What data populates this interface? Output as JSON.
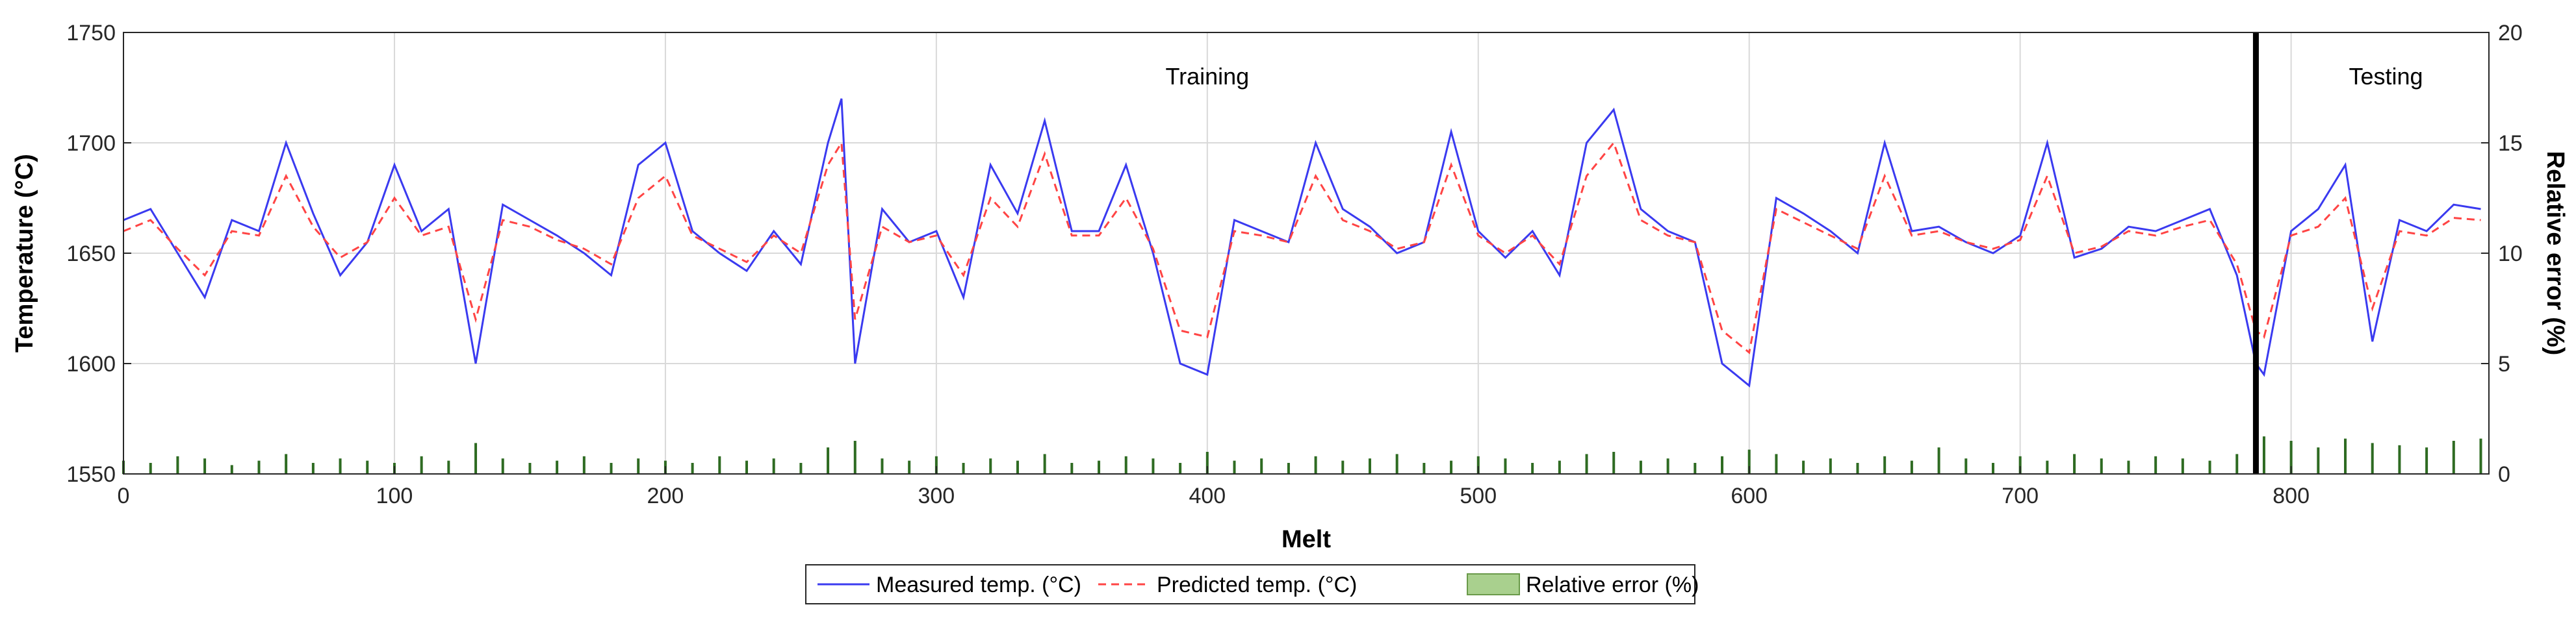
{
  "chart_data": {
    "type": "line",
    "title": "",
    "xlabel": "Melt",
    "ylabel": "Temperature (°C)",
    "ylabel_right": "Relative error (%)",
    "xlim": [
      0,
      873
    ],
    "ylim": [
      1550,
      1750
    ],
    "ylim_right": [
      0,
      20
    ],
    "x_ticks": [
      0,
      100,
      200,
      300,
      400,
      500,
      600,
      700,
      800
    ],
    "y_ticks": [
      1550,
      1600,
      1650,
      1700,
      1750
    ],
    "y_ticks_right": [
      0,
      5,
      10,
      15,
      20
    ],
    "grid": true,
    "split_x": 787,
    "annotations": [
      {
        "text": "Training",
        "x": 400,
        "y": 1730
      },
      {
        "text": "Testing",
        "x": 835,
        "y": 1730
      }
    ],
    "legend": {
      "placement": "bottom-center",
      "entries": [
        "Measured temp. (°C)",
        "Predicted temp. (°C)",
        "Relative error (%)"
      ]
    },
    "series": [
      {
        "name": "Measured temp. (°C)",
        "style": "solid",
        "color": "#3a3af0",
        "x": [
          0,
          10,
          20,
          30,
          40,
          50,
          60,
          70,
          80,
          90,
          100,
          110,
          120,
          130,
          140,
          150,
          160,
          170,
          180,
          190,
          200,
          210,
          220,
          230,
          240,
          250,
          260,
          265,
          270,
          280,
          290,
          300,
          310,
          320,
          330,
          340,
          350,
          360,
          370,
          380,
          390,
          400,
          410,
          420,
          430,
          440,
          450,
          460,
          470,
          480,
          490,
          500,
          510,
          520,
          530,
          540,
          550,
          560,
          570,
          580,
          590,
          600,
          610,
          620,
          630,
          640,
          650,
          660,
          670,
          680,
          690,
          700,
          710,
          720,
          730,
          740,
          750,
          760,
          770,
          780,
          787,
          790,
          800,
          810,
          820,
          830,
          840,
          850,
          860,
          870
        ],
        "values": [
          1665,
          1670,
          1650,
          1630,
          1665,
          1660,
          1700,
          1668,
          1640,
          1655,
          1690,
          1660,
          1670,
          1600,
          1672,
          1665,
          1658,
          1650,
          1640,
          1690,
          1700,
          1660,
          1650,
          1642,
          1660,
          1645,
          1700,
          1720,
          1600,
          1670,
          1655,
          1660,
          1630,
          1690,
          1668,
          1710,
          1660,
          1660,
          1690,
          1650,
          1600,
          1595,
          1665,
          1660,
          1655,
          1700,
          1670,
          1662,
          1650,
          1655,
          1705,
          1660,
          1648,
          1660,
          1640,
          1700,
          1715,
          1670,
          1660,
          1655,
          1600,
          1590,
          1675,
          1668,
          1660,
          1650,
          1700,
          1660,
          1662,
          1655,
          1650,
          1658,
          1700,
          1648,
          1652,
          1662,
          1660,
          1665,
          1670,
          1640,
          1600,
          1595,
          1660,
          1670,
          1690,
          1610,
          1665,
          1660,
          1672,
          1670
        ]
      },
      {
        "name": "Predicted temp. (°C)",
        "style": "dashed",
        "color": "#ff4444",
        "x": [
          0,
          10,
          20,
          30,
          40,
          50,
          60,
          70,
          80,
          90,
          100,
          110,
          120,
          130,
          140,
          150,
          160,
          170,
          180,
          190,
          200,
          210,
          220,
          230,
          240,
          250,
          260,
          265,
          270,
          280,
          290,
          300,
          310,
          320,
          330,
          340,
          350,
          360,
          370,
          380,
          390,
          400,
          410,
          420,
          430,
          440,
          450,
          460,
          470,
          480,
          490,
          500,
          510,
          520,
          530,
          540,
          550,
          560,
          570,
          580,
          590,
          600,
          610,
          620,
          630,
          640,
          650,
          660,
          670,
          680,
          690,
          700,
          710,
          720,
          730,
          740,
          750,
          760,
          770,
          780,
          787,
          790,
          800,
          810,
          820,
          830,
          840,
          850,
          860,
          870
        ],
        "values": [
          1660,
          1665,
          1652,
          1640,
          1660,
          1658,
          1685,
          1662,
          1648,
          1655,
          1675,
          1658,
          1662,
          1620,
          1665,
          1662,
          1656,
          1652,
          1645,
          1675,
          1685,
          1658,
          1652,
          1646,
          1658,
          1650,
          1690,
          1700,
          1620,
          1662,
          1655,
          1658,
          1640,
          1675,
          1662,
          1695,
          1658,
          1658,
          1675,
          1652,
          1615,
          1612,
          1660,
          1658,
          1655,
          1685,
          1665,
          1660,
          1652,
          1655,
          1690,
          1658,
          1650,
          1658,
          1645,
          1685,
          1700,
          1665,
          1658,
          1655,
          1615,
          1605,
          1670,
          1664,
          1658,
          1652,
          1685,
          1658,
          1660,
          1655,
          1652,
          1656,
          1685,
          1650,
          1653,
          1660,
          1658,
          1662,
          1665,
          1645,
          1615,
          1612,
          1658,
          1662,
          1675,
          1625,
          1660,
          1658,
          1666,
          1665
        ]
      },
      {
        "name": "Relative error (%)",
        "style": "bar",
        "color": "#2e6b22",
        "x": [
          0,
          10,
          20,
          30,
          40,
          50,
          60,
          70,
          80,
          90,
          100,
          110,
          120,
          130,
          140,
          150,
          160,
          170,
          180,
          190,
          200,
          210,
          220,
          230,
          240,
          250,
          260,
          270,
          280,
          290,
          300,
          310,
          320,
          330,
          340,
          350,
          360,
          370,
          380,
          390,
          400,
          410,
          420,
          430,
          440,
          450,
          460,
          470,
          480,
          490,
          500,
          510,
          520,
          530,
          540,
          550,
          560,
          570,
          580,
          590,
          600,
          610,
          620,
          630,
          640,
          650,
          660,
          670,
          680,
          690,
          700,
          710,
          720,
          730,
          740,
          750,
          760,
          770,
          780,
          790,
          800,
          810,
          820,
          830,
          840,
          850,
          860,
          870
        ],
        "values": [
          0.6,
          0.5,
          0.8,
          0.7,
          0.4,
          0.6,
          0.9,
          0.5,
          0.7,
          0.6,
          0.5,
          0.8,
          0.6,
          1.4,
          0.7,
          0.5,
          0.6,
          0.8,
          0.5,
          0.7,
          0.6,
          0.5,
          0.8,
          0.6,
          0.7,
          0.5,
          1.2,
          1.5,
          0.7,
          0.6,
          0.8,
          0.5,
          0.7,
          0.6,
          0.9,
          0.5,
          0.6,
          0.8,
          0.7,
          0.5,
          1.0,
          0.6,
          0.7,
          0.5,
          0.8,
          0.6,
          0.7,
          0.9,
          0.5,
          0.6,
          0.8,
          0.7,
          0.5,
          0.6,
          0.9,
          1.0,
          0.6,
          0.7,
          0.5,
          0.8,
          1.1,
          0.9,
          0.6,
          0.7,
          0.5,
          0.8,
          0.6,
          1.2,
          0.7,
          0.5,
          0.8,
          0.6,
          0.9,
          0.7,
          0.6,
          0.8,
          0.7,
          0.6,
          0.9,
          1.7,
          1.5,
          1.2,
          1.6,
          1.4,
          1.3,
          1.2,
          1.5,
          1.6
        ]
      }
    ]
  }
}
